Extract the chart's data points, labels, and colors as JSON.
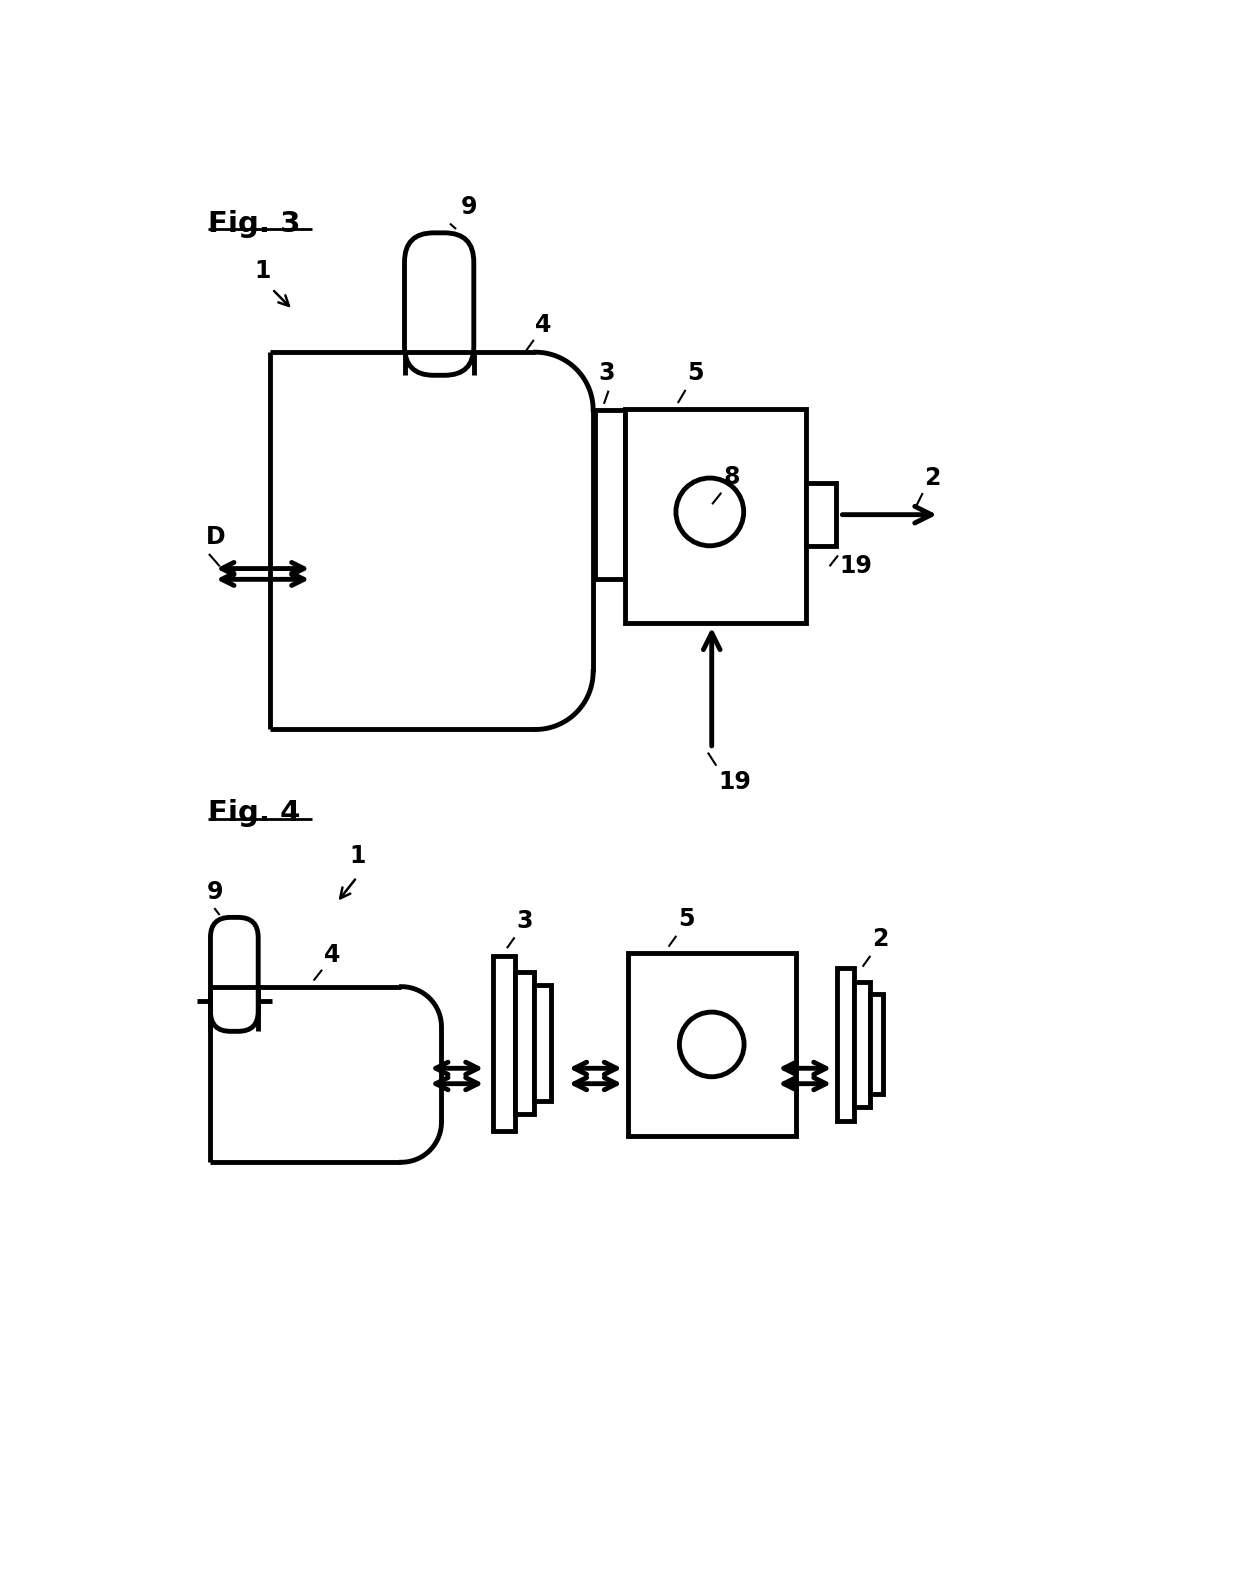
{
  "bg_color": "#ffffff",
  "line_color": "#000000",
  "lw": 2.5,
  "blw": 3.5,
  "fs": 17,
  "fig3_label": "Fig. 3",
  "fig4_label": "Fig. 4"
}
